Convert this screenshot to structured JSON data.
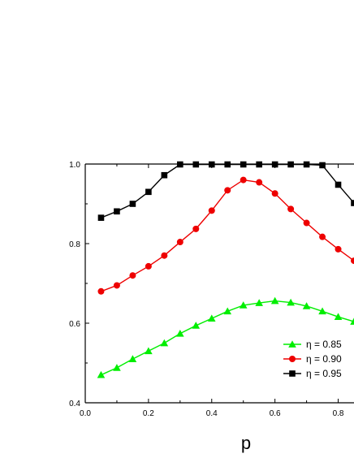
{
  "chart_data": {
    "type": "line",
    "xlabel": "p",
    "ylabel": "",
    "xlim": [
      0.0,
      0.85
    ],
    "ylim": [
      0.4,
      1.0
    ],
    "x_ticks": [
      "0.0",
      "0.2",
      "0.4",
      "0.6",
      "0.8"
    ],
    "y_ticks": [
      "0.4",
      "0.6",
      "0.8",
      "1.0"
    ],
    "grid": false,
    "legend_position": "bottom-right",
    "series": [
      {
        "name": "η = 0.85",
        "color": "#00ee00",
        "marker": "triangle",
        "x": [
          0.05,
          0.1,
          0.15,
          0.2,
          0.25,
          0.3,
          0.35,
          0.4,
          0.45,
          0.5,
          0.55,
          0.6,
          0.65,
          0.7,
          0.75,
          0.8,
          0.85
        ],
        "y": [
          0.47,
          0.488,
          0.51,
          0.53,
          0.55,
          0.574,
          0.594,
          0.612,
          0.63,
          0.645,
          0.651,
          0.656,
          0.652,
          0.643,
          0.63,
          0.616,
          0.604
        ]
      },
      {
        "name": "η = 0.90",
        "color": "#ee0000",
        "marker": "circle",
        "x": [
          0.05,
          0.1,
          0.15,
          0.2,
          0.25,
          0.3,
          0.35,
          0.4,
          0.45,
          0.5,
          0.55,
          0.6,
          0.65,
          0.7,
          0.75,
          0.8,
          0.85
        ],
        "y": [
          0.68,
          0.695,
          0.72,
          0.743,
          0.77,
          0.804,
          0.837,
          0.883,
          0.934,
          0.96,
          0.954,
          0.926,
          0.887,
          0.852,
          0.817,
          0.786,
          0.757
        ]
      },
      {
        "name": "η = 0.95",
        "color": "#000000",
        "marker": "square",
        "x": [
          0.05,
          0.1,
          0.15,
          0.2,
          0.25,
          0.3,
          0.35,
          0.4,
          0.45,
          0.5,
          0.55,
          0.6,
          0.65,
          0.7,
          0.75,
          0.8,
          0.85
        ],
        "y": [
          0.865,
          0.881,
          0.9,
          0.93,
          0.972,
          0.999,
          0.999,
          0.999,
          0.999,
          0.999,
          0.999,
          0.999,
          0.999,
          0.999,
          0.997,
          0.948,
          0.902
        ]
      }
    ]
  }
}
